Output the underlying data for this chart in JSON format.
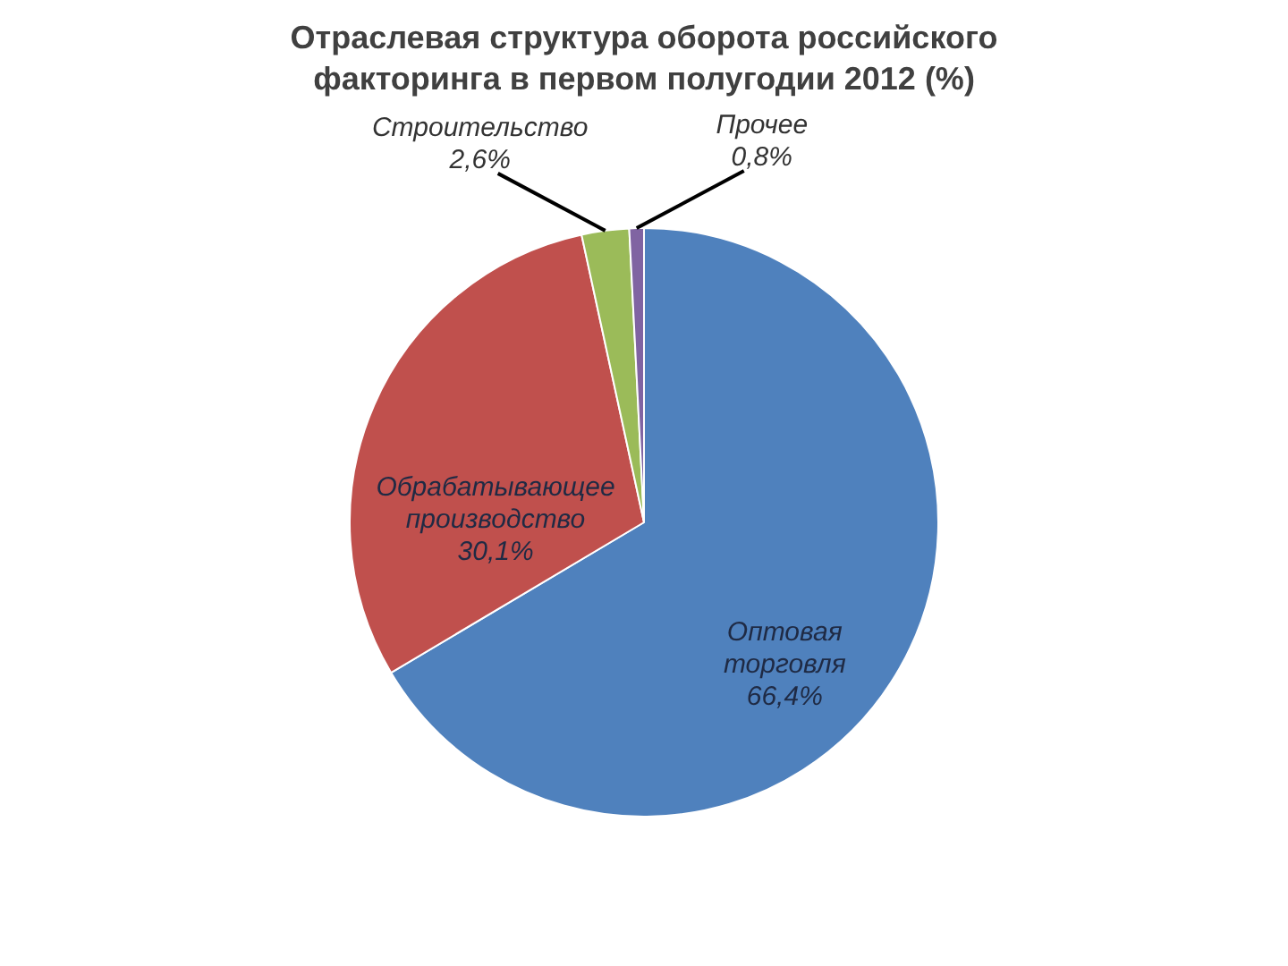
{
  "chart_data": {
    "type": "pie",
    "title": "Отраслевая структура оборота российского факторинга в первом полугодии 2012 (%)",
    "categories": [
      "Оптовая торговля",
      "Обрабатывающее производство",
      "Строительство",
      "Прочее"
    ],
    "values": [
      66.4,
      30.1,
      2.6,
      0.8
    ],
    "colors": [
      "#4f81bd",
      "#c0504d",
      "#9bbb59",
      "#8064a2"
    ],
    "value_labels": [
      "66,4%",
      "30,1%",
      "2,6%",
      "0,8%"
    ],
    "legend": false
  }
}
